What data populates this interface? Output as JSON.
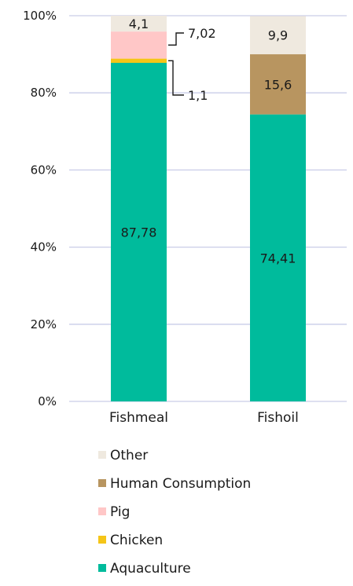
{
  "chart_data": {
    "type": "bar",
    "stacked": true,
    "categories": [
      "Fishmeal",
      "Fishoil"
    ],
    "series": [
      {
        "name": "Aquaculture",
        "values": [
          87.78,
          74.41
        ],
        "labels": [
          "87,78",
          "74,41"
        ],
        "color": "#00bb9c"
      },
      {
        "name": "Chicken",
        "values": [
          1.1,
          0
        ],
        "labels": [
          "1,1",
          ""
        ],
        "color": "#f5c518"
      },
      {
        "name": "Pig",
        "values": [
          7.02,
          0
        ],
        "labels": [
          "7,02",
          ""
        ],
        "color": "#ffc7c7"
      },
      {
        "name": "Human Consumption",
        "values": [
          0,
          15.6
        ],
        "labels": [
          "",
          "15,6"
        ],
        "color": "#b89560"
      },
      {
        "name": "Other",
        "values": [
          4.1,
          9.9
        ],
        "labels": [
          "4,1",
          "9,9"
        ],
        "color": "#efe9df"
      }
    ],
    "y_ticks": [
      "0%",
      "20%",
      "40%",
      "60%",
      "80%",
      "100%"
    ],
    "ylim": [
      0,
      100
    ],
    "grid": true,
    "grid_color": "#c9cde8",
    "legend": {
      "placement": "bottom",
      "order": [
        "Other",
        "Human Consumption",
        "Pig",
        "Chicken",
        "Aquaculture"
      ]
    },
    "callouts": [
      "Pig",
      "Chicken"
    ]
  }
}
